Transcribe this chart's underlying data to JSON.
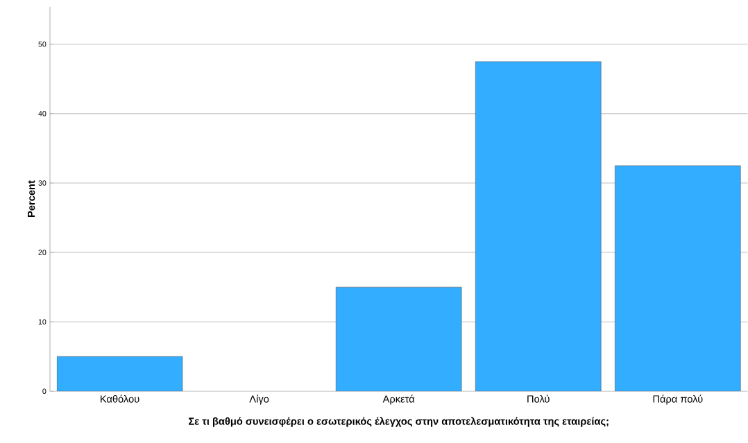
{
  "chart_data": {
    "type": "bar",
    "categories": [
      "Καθόλου",
      "Λίγο",
      "Αρκετά",
      "Πολύ",
      "Πάρα πολύ"
    ],
    "values": [
      5.0,
      0,
      15.0,
      47.5,
      32.5
    ],
    "color": "#33adff",
    "xlabel": "Σε τι βαθμό συνεισφέρει ο εσωτερικός έλεγχος στην αποτελεσματικότητα της εταιρείας;",
    "ylabel": "Percent",
    "ylim": [
      0,
      55.4
    ],
    "yticks": [
      0,
      10,
      20,
      30,
      40,
      50
    ],
    "grid": "y"
  }
}
